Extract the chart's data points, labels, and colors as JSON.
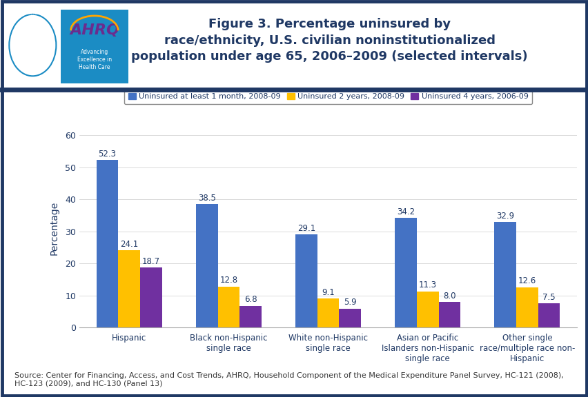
{
  "title": "Figure 3. Percentage uninsured by\nrace/ethnicity, U.S. civilian noninstitutionalized\npopulation under age 65, 2006–2009 (selected intervals)",
  "ylabel": "Percentage",
  "categories": [
    "Hispanic",
    "Black non-Hispanic\nsingle race",
    "White non-Hispanic\nsingle race",
    "Asian or Pacific\nIslanders non-Hispanic\nsingle race",
    "Other single\nrace/multiple race non-\nHispanic"
  ],
  "series": [
    {
      "label": "Uninsured at least 1 month, 2008-09",
      "color": "#4472C4",
      "values": [
        52.3,
        38.5,
        29.1,
        34.2,
        32.9
      ]
    },
    {
      "label": "Uninsured 2 years, 2008-09",
      "color": "#FFC000",
      "values": [
        24.1,
        12.8,
        9.1,
        11.3,
        12.6
      ]
    },
    {
      "label": "Uninsured 4 years, 2006-09",
      "color": "#7030A0",
      "values": [
        18.7,
        6.8,
        5.9,
        8.0,
        7.5
      ]
    }
  ],
  "ylim": [
    0,
    62
  ],
  "yticks": [
    0,
    10,
    20,
    30,
    40,
    50,
    60
  ],
  "bar_width": 0.22,
  "title_color": "#1F3864",
  "title_fontsize": 13,
  "axis_label_color": "#1F3864",
  "tick_label_color": "#1F3864",
  "value_label_color": "#1F3864",
  "value_label_fontsize": 8.5,
  "legend_fontsize": 8,
  "background_color": "#FFFFFF",
  "border_color": "#1F3864",
  "header_line_color": "#1F3864",
  "footer": "Source: Center for Financing, Access, and Cost Trends, AHRQ, Household Component of the Medical Expenditure Panel Survey, HC-121 (2008),\nHC-123 (2009), and HC-130 (Panel 13)",
  "footer_fontsize": 8,
  "hhs_bg_color": "#1B8CC4",
  "ahrq_bg_color": "#FFFFFF",
  "ahrq_text_color": "#6B2C8E",
  "ahrq_sub_color": "#1B8CC4",
  "header_bg_color": "#FFFFFF"
}
